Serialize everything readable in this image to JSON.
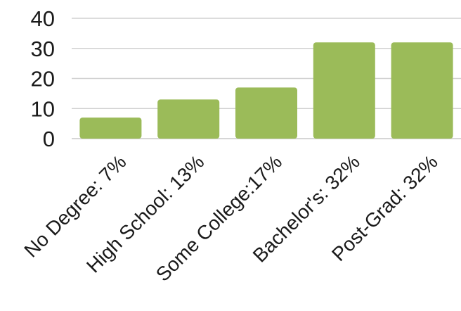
{
  "chart_data": {
    "type": "bar",
    "categories": [
      "No Degree: 7%",
      "High School: 13%",
      "Some College:17%",
      "Bachelor's: 32%",
      "Post-Grad: 32%"
    ],
    "values": [
      7,
      13,
      17,
      32,
      32
    ],
    "yticks": [
      "0",
      "10",
      "20",
      "30",
      "40"
    ],
    "ylim": [
      0,
      40
    ],
    "grid": true,
    "legend": "none",
    "colors": {
      "bar": "#9bbb59",
      "grid": "#d0d0d0",
      "text": "#1a1a1a"
    }
  }
}
